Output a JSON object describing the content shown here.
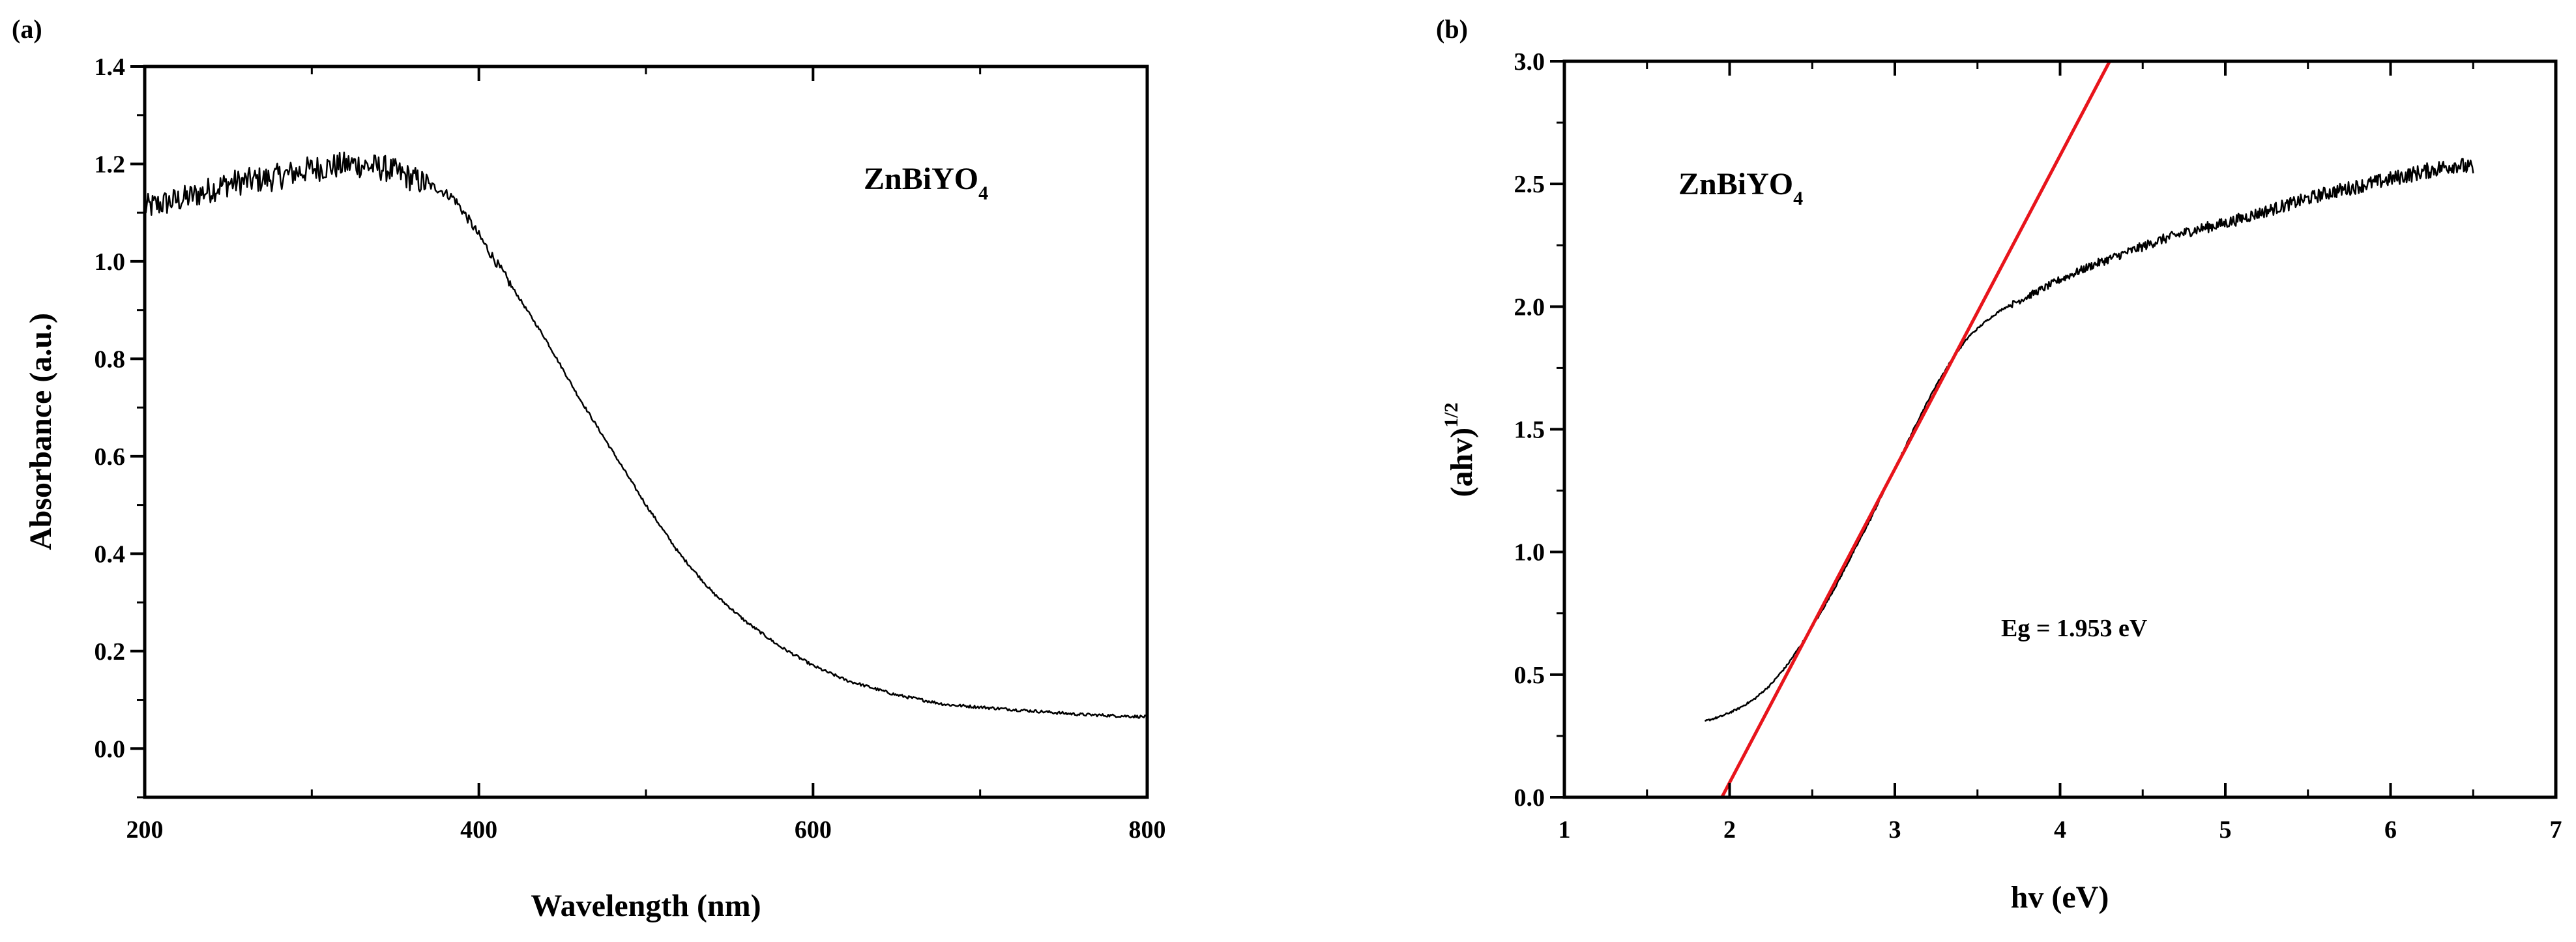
{
  "chart_data": [
    {
      "type": "line",
      "panel_label": "(a)",
      "xlabel": "Wavelength (nm)",
      "ylabel": "Absorbance (a.u.)",
      "xlim": [
        200,
        800
      ],
      "ylim": [
        -0.1,
        1.4
      ],
      "xticks": [
        200,
        400,
        600,
        800
      ],
      "yticks": [
        0.0,
        0.2,
        0.4,
        0.6,
        0.8,
        1.0,
        1.2,
        1.4
      ],
      "annotation": {
        "text": "ZnBiYO",
        "subscript": "4"
      },
      "series": [
        {
          "color": "#000000",
          "x": [
            200,
            225,
            250,
            275,
            300,
            325,
            345,
            360,
            375,
            385,
            395,
            410,
            425,
            440,
            460,
            480,
            500,
            520,
            540,
            560,
            580,
            600,
            620,
            650,
            680,
            720,
            760,
            800
          ],
          "y": [
            1.11,
            1.13,
            1.16,
            1.17,
            1.19,
            1.2,
            1.19,
            1.17,
            1.15,
            1.13,
            1.08,
            1.0,
            0.92,
            0.84,
            0.72,
            0.61,
            0.5,
            0.4,
            0.32,
            0.26,
            0.21,
            0.17,
            0.14,
            0.11,
            0.09,
            0.08,
            0.07,
            0.065
          ]
        }
      ]
    },
    {
      "type": "line",
      "panel_label": "(b)",
      "xlabel": "hv (eV)",
      "ylabel": "(ahv)",
      "ylabel_superscript": "1/2",
      "xlim": [
        1,
        7
      ],
      "ylim": [
        0.0,
        3.0
      ],
      "xticks": [
        1,
        2,
        3,
        4,
        5,
        6,
        7
      ],
      "yticks": [
        0.0,
        0.5,
        1.0,
        1.5,
        2.0,
        2.5,
        3.0
      ],
      "annotation": {
        "text": "ZnBiYO",
        "subscript": "4"
      },
      "eg_label": "Eg = 1.953 eV",
      "series": [
        {
          "color": "#000000",
          "x": [
            1.85,
            1.95,
            2.05,
            2.15,
            2.25,
            2.35,
            2.45,
            2.55,
            2.65,
            2.75,
            2.85,
            2.95,
            3.05,
            3.15,
            3.25,
            3.35,
            3.45,
            3.55,
            3.65,
            3.8,
            4.0,
            4.2,
            4.4,
            4.6,
            4.8,
            5.0,
            5.2,
            5.4,
            5.6,
            5.8,
            6.0,
            6.2,
            6.4,
            6.5
          ],
          "y": [
            0.31,
            0.33,
            0.36,
            0.4,
            0.46,
            0.54,
            0.64,
            0.75,
            0.87,
            1.0,
            1.13,
            1.27,
            1.41,
            1.55,
            1.68,
            1.79,
            1.88,
            1.94,
            1.99,
            2.04,
            2.11,
            2.17,
            2.22,
            2.27,
            2.31,
            2.34,
            2.38,
            2.42,
            2.46,
            2.49,
            2.52,
            2.55,
            2.58,
            2.56
          ]
        },
        {
          "color": "#e8141b",
          "x": [
            1.953,
            4.3
          ],
          "y": [
            0.0,
            3.0
          ]
        }
      ]
    }
  ]
}
